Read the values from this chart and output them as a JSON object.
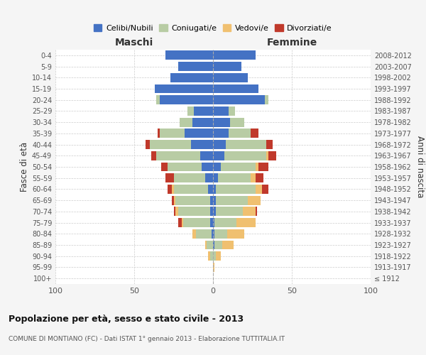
{
  "age_groups": [
    "100+",
    "95-99",
    "90-94",
    "85-89",
    "80-84",
    "75-79",
    "70-74",
    "65-69",
    "60-64",
    "55-59",
    "50-54",
    "45-49",
    "40-44",
    "35-39",
    "30-34",
    "25-29",
    "20-24",
    "15-19",
    "10-14",
    "5-9",
    "0-4"
  ],
  "birth_years": [
    "≤ 1912",
    "1913-1917",
    "1918-1922",
    "1923-1927",
    "1928-1932",
    "1933-1937",
    "1938-1942",
    "1943-1947",
    "1948-1952",
    "1953-1957",
    "1958-1962",
    "1963-1967",
    "1968-1972",
    "1973-1977",
    "1978-1982",
    "1983-1987",
    "1988-1992",
    "1993-1997",
    "1998-2002",
    "2003-2007",
    "2008-2012"
  ],
  "male": {
    "celibi": [
      0,
      0,
      0,
      0,
      1,
      2,
      2,
      2,
      3,
      5,
      7,
      8,
      14,
      18,
      13,
      12,
      34,
      37,
      27,
      22,
      30
    ],
    "coniugati": [
      0,
      0,
      2,
      4,
      10,
      17,
      20,
      22,
      22,
      20,
      22,
      28,
      26,
      16,
      8,
      4,
      2,
      0,
      0,
      0,
      0
    ],
    "vedovi": [
      0,
      0,
      1,
      1,
      2,
      1,
      2,
      1,
      1,
      0,
      0,
      0,
      0,
      0,
      0,
      0,
      0,
      0,
      0,
      0,
      0
    ],
    "divorziati": [
      0,
      0,
      0,
      0,
      0,
      2,
      1,
      1,
      3,
      5,
      4,
      3,
      3,
      1,
      0,
      0,
      0,
      0,
      0,
      0,
      0
    ]
  },
  "female": {
    "nubili": [
      0,
      0,
      0,
      1,
      1,
      1,
      2,
      2,
      2,
      3,
      5,
      7,
      8,
      10,
      11,
      10,
      33,
      29,
      22,
      18,
      27
    ],
    "coniugate": [
      0,
      0,
      2,
      5,
      8,
      14,
      17,
      20,
      25,
      21,
      22,
      27,
      26,
      14,
      9,
      4,
      2,
      0,
      0,
      0,
      0
    ],
    "vedove": [
      0,
      1,
      3,
      7,
      11,
      12,
      8,
      8,
      4,
      3,
      2,
      1,
      0,
      0,
      0,
      0,
      0,
      0,
      0,
      0,
      0
    ],
    "divorziate": [
      0,
      0,
      0,
      0,
      0,
      0,
      1,
      0,
      4,
      5,
      6,
      5,
      4,
      5,
      0,
      0,
      0,
      0,
      0,
      0,
      0
    ]
  },
  "colors": {
    "celibi": "#4472c4",
    "coniugati": "#b8cca4",
    "vedovi": "#f0c070",
    "divorziati": "#c0392b"
  },
  "xlim": 100,
  "title": "Popolazione per età, sesso e stato civile - 2013",
  "subtitle": "COMUNE DI MONTIANO (FC) - Dati ISTAT 1° gennaio 2013 - Elaborazione TUTTITALIA.IT",
  "xlabel_left": "Maschi",
  "xlabel_right": "Femmine",
  "ylabel_left": "Fasce di età",
  "ylabel_right": "Anni di nascita",
  "legend_labels": [
    "Celibi/Nubili",
    "Coniugati/e",
    "Vedovi/e",
    "Divorziati/e"
  ],
  "bg_color": "#f5f5f5",
  "plot_bg": "#ffffff",
  "grid_color": "#cccccc"
}
